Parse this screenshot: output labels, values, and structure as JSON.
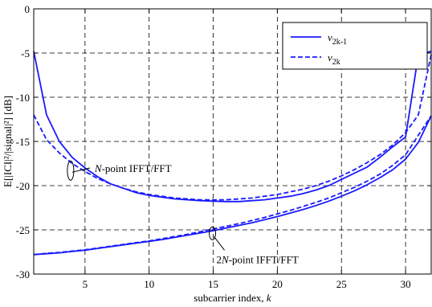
{
  "chart_data": {
    "type": "line",
    "xlabel": "subcarrier index, k",
    "ylabel": "E[|ICI|²/|signal|²] [dB]",
    "xlim": [
      1,
      32
    ],
    "ylim": [
      -30,
      0
    ],
    "xticks": [
      5,
      10,
      15,
      20,
      25,
      30
    ],
    "yticks": [
      0,
      -5,
      -10,
      -15,
      -20,
      -25,
      -30
    ],
    "grid": true,
    "legend_position": "top-right",
    "legend": [
      {
        "base": "v",
        "sub": "2k-1",
        "style": "solid"
      },
      {
        "base": "v",
        "sub": "2k",
        "style": "dashed"
      }
    ],
    "series": [
      {
        "name": "v2k-1",
        "group": "N-point IFFT/FFT",
        "style": "solid",
        "x": [
          1,
          2,
          3,
          4,
          5,
          6,
          7,
          8,
          9,
          10,
          11,
          12,
          13,
          14,
          15,
          16,
          17,
          18,
          19,
          20,
          21,
          22,
          23,
          24,
          25,
          26,
          27,
          28,
          29,
          30,
          31,
          32
        ],
        "y": [
          -4.8,
          -12.0,
          -15.0,
          -16.8,
          -18.0,
          -19.0,
          -19.8,
          -20.3,
          -20.8,
          -21.1,
          -21.3,
          -21.5,
          -21.6,
          -21.7,
          -21.75,
          -21.8,
          -21.8,
          -21.7,
          -21.6,
          -21.4,
          -21.2,
          -20.9,
          -20.5,
          -20.0,
          -19.3,
          -18.6,
          -17.9,
          -16.8,
          -15.6,
          -14.5,
          -5.2,
          -4.8
        ]
      },
      {
        "name": "v2k",
        "group": "N-point IFFT/FFT",
        "style": "dashed",
        "x": [
          1,
          2,
          3,
          4,
          5,
          6,
          7,
          8,
          9,
          10,
          11,
          12,
          13,
          14,
          15,
          16,
          17,
          18,
          19,
          20,
          21,
          22,
          23,
          24,
          25,
          26,
          27,
          28,
          29,
          30,
          31,
          32
        ],
        "y": [
          -12.0,
          -14.8,
          -16.3,
          -17.5,
          -18.4,
          -19.2,
          -19.8,
          -20.3,
          -20.7,
          -21.0,
          -21.2,
          -21.4,
          -21.5,
          -21.6,
          -21.6,
          -21.6,
          -21.5,
          -21.4,
          -21.2,
          -21.0,
          -20.7,
          -20.4,
          -20.0,
          -19.5,
          -18.9,
          -18.2,
          -17.4,
          -16.5,
          -15.4,
          -14.0,
          -12.0,
          -5.2
        ]
      },
      {
        "name": "v2k-1",
        "group": "2N-point IFFT/FFT",
        "style": "solid",
        "x": [
          1,
          2,
          3,
          4,
          5,
          6,
          7,
          8,
          9,
          10,
          11,
          12,
          13,
          14,
          15,
          16,
          17,
          18,
          19,
          20,
          21,
          22,
          23,
          24,
          25,
          26,
          27,
          28,
          29,
          30,
          31,
          32
        ],
        "y": [
          -27.8,
          -27.7,
          -27.6,
          -27.45,
          -27.3,
          -27.1,
          -26.9,
          -26.7,
          -26.5,
          -26.3,
          -26.1,
          -25.85,
          -25.6,
          -25.35,
          -25.1,
          -24.8,
          -24.5,
          -24.2,
          -23.85,
          -23.5,
          -23.1,
          -22.7,
          -22.25,
          -21.75,
          -21.2,
          -20.6,
          -19.9,
          -19.1,
          -18.2,
          -17.0,
          -15.1,
          -12.1
        ]
      },
      {
        "name": "v2k",
        "group": "2N-point IFFT/FFT",
        "style": "dashed",
        "x": [
          1,
          2,
          3,
          4,
          5,
          6,
          7,
          8,
          9,
          10,
          11,
          12,
          13,
          14,
          15,
          16,
          17,
          18,
          19,
          20,
          21,
          22,
          23,
          24,
          25,
          26,
          27,
          28,
          29,
          30,
          31,
          32
        ],
        "y": [
          -27.8,
          -27.65,
          -27.55,
          -27.4,
          -27.25,
          -27.05,
          -26.85,
          -26.65,
          -26.45,
          -26.25,
          -26.0,
          -25.75,
          -25.5,
          -25.2,
          -24.9,
          -24.6,
          -24.3,
          -23.95,
          -23.6,
          -23.2,
          -22.8,
          -22.35,
          -21.9,
          -21.4,
          -20.8,
          -20.2,
          -19.5,
          -18.7,
          -17.7,
          -16.5,
          -14.3,
          -12.1
        ]
      }
    ],
    "annotations": [
      {
        "italic": "N",
        "rest": "-point IFFT/FFT",
        "target_x": 4,
        "target_y": -17.8
      },
      {
        "prefix": "2",
        "italic": "N",
        "rest": "-point IFFT/FFT",
        "target_x": 15,
        "target_y": -25.2
      }
    ]
  }
}
